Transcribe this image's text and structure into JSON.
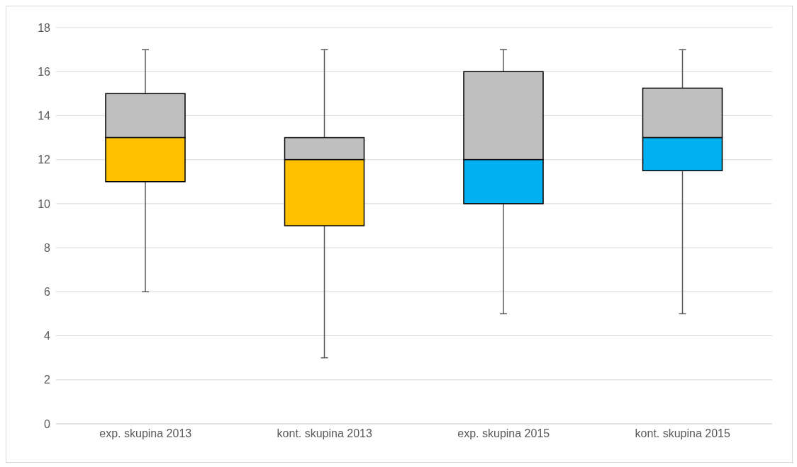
{
  "chart_data": {
    "type": "box",
    "categories": [
      "exp. skupina 2013",
      "kont. skupina 2013",
      "exp. skupina 2015",
      "kont. skupina 2015"
    ],
    "boxes": [
      {
        "low": 6,
        "q1": 11,
        "median": 13,
        "q3": 15,
        "high": 17
      },
      {
        "low": 3,
        "q1": 9,
        "median": 12,
        "q3": 13,
        "high": 17
      },
      {
        "low": 5,
        "q1": 10,
        "median": 12,
        "q3": 16,
        "high": 17
      },
      {
        "low": 5,
        "q1": 11.5,
        "median": 13,
        "q3": 15.25,
        "high": 17
      }
    ],
    "colors": [
      "#ffc000",
      "#ffc000",
      "#00b0f0",
      "#00b0f0"
    ],
    "color": "#bfbfbf",
    "ylim": [
      0,
      18
    ],
    "yticks": [
      0,
      2,
      4,
      6,
      8,
      10,
      12,
      14,
      16,
      18
    ],
    "grid": "y"
  }
}
